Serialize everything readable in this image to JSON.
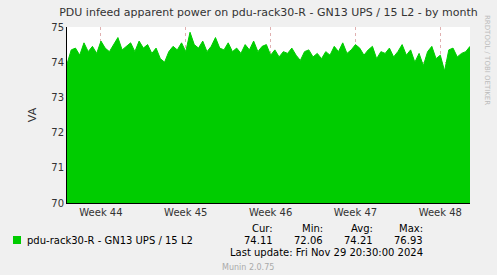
{
  "chart_data": {
    "type": "area",
    "title": "PDU infeed apparent power on pdu-rack30-R - GN13 UPS / 15 L2 - by month",
    "y_label": "VA",
    "categories": [
      null,
      null,
      null,
      null,
      null,
      null,
      null,
      null,
      "Week 44",
      null,
      null,
      null,
      null,
      null,
      null,
      null,
      null,
      null,
      null,
      null,
      null,
      null,
      null,
      null,
      null,
      null,
      null,
      null,
      "Week 45",
      null,
      null,
      null,
      null,
      null,
      null,
      null,
      null,
      null,
      null,
      null,
      null,
      null,
      null,
      null,
      null,
      null,
      null,
      null,
      "Week 46",
      null,
      null,
      null,
      null,
      null,
      null,
      null,
      null,
      null,
      null,
      null,
      null,
      null,
      null,
      null,
      null,
      null,
      null,
      null,
      "Week 47",
      null,
      null,
      null,
      null,
      null,
      null,
      null,
      null,
      null,
      null,
      null,
      null,
      null,
      null,
      null,
      null,
      null,
      null,
      null,
      "Week 48",
      null,
      null,
      null,
      null,
      null,
      null,
      null
    ],
    "series": [
      {
        "name": "pdu-rack30-R - GN13 UPS / 15 L2",
        "color": "#00cc00",
        "values": [
          73.95,
          74.35,
          74.4,
          74.2,
          74.55,
          74.3,
          74.45,
          74.25,
          74.6,
          74.4,
          74.3,
          74.5,
          74.7,
          74.35,
          74.45,
          74.55,
          74.3,
          74.6,
          74.4,
          74.5,
          74.25,
          74.4,
          74.1,
          74.0,
          74.3,
          74.45,
          74.35,
          74.55,
          74.3,
          74.85,
          74.5,
          74.4,
          74.6,
          74.3,
          74.45,
          74.7,
          74.4,
          74.35,
          74.55,
          74.3,
          74.4,
          74.25,
          74.5,
          74.35,
          74.6,
          74.3,
          74.45,
          74.5,
          74.2,
          74.35,
          74.15,
          74.3,
          74.25,
          74.4,
          74.2,
          74.05,
          74.3,
          74.35,
          74.15,
          74.25,
          74.1,
          74.3,
          74.2,
          74.45,
          74.3,
          74.55,
          74.25,
          74.35,
          74.5,
          74.4,
          74.2,
          74.35,
          74.45,
          74.1,
          74.3,
          74.25,
          74.4,
          74.15,
          74.3,
          74.5,
          74.2,
          74.35,
          74.0,
          74.25,
          73.9,
          74.3,
          74.45,
          74.1,
          74.2,
          73.75,
          74.35,
          74.4,
          74.15,
          74.25,
          74.3,
          74.45
        ]
      }
    ],
    "ylim": [
      70,
      75
    ],
    "yticks": [
      70,
      71,
      72,
      73,
      74,
      75
    ],
    "grid": true,
    "summary": {
      "labels": [
        "Cur:",
        "Min:",
        "Avg:",
        "Max:"
      ],
      "values": [
        74.11,
        72.06,
        74.21,
        76.93
      ]
    },
    "last_update": "Last update: Fri Nov 29 20:30:00 2024",
    "footer": "Munin 2.0.75",
    "watermark": "RRDTOOL / TOBI OETIKER"
  }
}
